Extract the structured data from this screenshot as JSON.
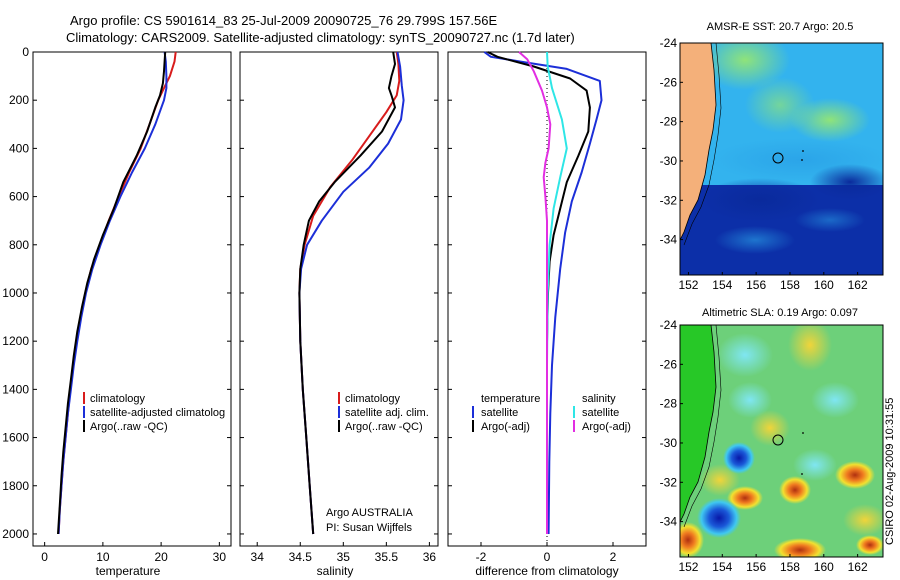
{
  "header": {
    "line1": "Argo profile: CS 5901614_83 25-Jul-2009 20090725_76 29.799S 157.56E",
    "line2": "Climatology: CARS2009. Satellite-adjusted climatology: synTS_20090727.nc (1.7d later)"
  },
  "footer": {
    "credit": "Argo AUSTRALIA",
    "pi": "PI: Susan Wijffels",
    "stamp": "CSIRO 02-Aug-2009 10:31:55"
  },
  "colors": {
    "climatology": "#d81c1c",
    "satellite": "#1c2fd8",
    "argo": "#000000",
    "satellite_salinity": "#2ee6e6",
    "argo_salinity": "#e22ee2",
    "land": "#f4b07a"
  },
  "chart_data": [
    {
      "type": "line",
      "id": "temperature-profile",
      "xlabel": "temperature",
      "ylabel": "",
      "xlim": [
        -2,
        32
      ],
      "ylim": [
        2050,
        0
      ],
      "xticks": [
        "0",
        "10",
        "20",
        "30"
      ],
      "xtick_values": [
        0,
        10,
        20,
        30
      ],
      "yticks": [
        "0",
        "200",
        "400",
        "600",
        "800",
        "1000",
        "1200",
        "1400",
        "1600",
        "1800",
        "2000"
      ],
      "ytick_values": [
        0,
        200,
        400,
        600,
        800,
        1000,
        1200,
        1400,
        1600,
        1800,
        2000
      ],
      "legend": [
        "climatology",
        "satellite-adjusted climatolog",
        "Argo(..raw -QC)"
      ],
      "series": [
        {
          "name": "climatology",
          "color": "#d81c1c",
          "points": [
            [
              22.5,
              0
            ],
            [
              22.3,
              40
            ],
            [
              21.5,
              100
            ],
            [
              20.5,
              150
            ],
            [
              19.5,
              200
            ],
            [
              18,
              300
            ],
            [
              16.5,
              400
            ],
            [
              14.5,
              500
            ],
            [
              12.7,
              600
            ],
            [
              11,
              700
            ],
            [
              9.5,
              800
            ],
            [
              8,
              900
            ],
            [
              7,
              1000
            ],
            [
              6.2,
              1100
            ],
            [
              5.5,
              1200
            ],
            [
              4.9,
              1300
            ],
            [
              4.4,
              1400
            ],
            [
              4,
              1500
            ],
            [
              3.6,
              1600
            ],
            [
              3.2,
              1700
            ],
            [
              2.9,
              1800
            ],
            [
              2.6,
              1900
            ],
            [
              2.4,
              2000
            ]
          ]
        },
        {
          "name": "satellite",
          "color": "#1c2fd8",
          "points": [
            [
              20.6,
              0
            ],
            [
              20.8,
              40
            ],
            [
              20.9,
              100
            ],
            [
              20.9,
              150
            ],
            [
              20.5,
              200
            ],
            [
              19,
              300
            ],
            [
              17.2,
              400
            ],
            [
              15,
              500
            ],
            [
              13,
              600
            ],
            [
              11.2,
              700
            ],
            [
              9.6,
              800
            ],
            [
              8.2,
              900
            ],
            [
              7.1,
              1000
            ],
            [
              6.3,
              1100
            ],
            [
              5.6,
              1200
            ],
            [
              5,
              1300
            ],
            [
              4.5,
              1400
            ],
            [
              4,
              1500
            ],
            [
              3.6,
              1600
            ],
            [
              3.2,
              1700
            ],
            [
              2.9,
              1800
            ],
            [
              2.6,
              1900
            ],
            [
              2.4,
              2000
            ]
          ]
        },
        {
          "name": "Argo(..raw -QC)",
          "color": "#000000",
          "points": [
            [
              20.7,
              0
            ],
            [
              20.6,
              40
            ],
            [
              20.5,
              80
            ],
            [
              20.3,
              130
            ],
            [
              19.8,
              180
            ],
            [
              19,
              230
            ],
            [
              17.6,
              330
            ],
            [
              15.8,
              430
            ],
            [
              13.5,
              540
            ],
            [
              11.9,
              650
            ],
            [
              10,
              760
            ],
            [
              8.5,
              860
            ],
            [
              7.3,
              960
            ],
            [
              6.4,
              1060
            ],
            [
              5.6,
              1160
            ],
            [
              5,
              1260
            ],
            [
              4.5,
              1360
            ],
            [
              4,
              1460
            ],
            [
              3.6,
              1560
            ],
            [
              3.2,
              1660
            ],
            [
              2.9,
              1760
            ],
            [
              2.6,
              1880
            ],
            [
              2.3,
              2000
            ]
          ]
        }
      ]
    },
    {
      "type": "line",
      "id": "salinity-profile",
      "xlabel": "salinity",
      "ylabel": "",
      "xlim": [
        33.8,
        36.1
      ],
      "ylim": [
        2050,
        0
      ],
      "xticks": [
        "34",
        "34.5",
        "35",
        "35.5",
        "36"
      ],
      "xtick_values": [
        34,
        34.5,
        35,
        35.5,
        36
      ],
      "legend": [
        "climatology",
        "satellite adj. clim.",
        "Argo(..raw -QC)"
      ],
      "series": [
        {
          "name": "climatology",
          "color": "#d81c1c",
          "points": [
            [
              35.62,
              0
            ],
            [
              35.64,
              50
            ],
            [
              35.65,
              120
            ],
            [
              35.62,
              180
            ],
            [
              35.5,
              250
            ],
            [
              35.3,
              350
            ],
            [
              35.1,
              450
            ],
            [
              34.85,
              560
            ],
            [
              34.65,
              680
            ],
            [
              34.55,
              800
            ],
            [
              34.5,
              900
            ],
            [
              34.49,
              1000
            ],
            [
              34.5,
              1200
            ],
            [
              34.53,
              1400
            ],
            [
              34.57,
              1600
            ],
            [
              34.61,
              1800
            ],
            [
              34.65,
              2000
            ]
          ]
        },
        {
          "name": "satellite",
          "color": "#1c2fd8",
          "points": [
            [
              35.63,
              0
            ],
            [
              35.66,
              60
            ],
            [
              35.68,
              140
            ],
            [
              35.7,
              200
            ],
            [
              35.67,
              280
            ],
            [
              35.52,
              380
            ],
            [
              35.3,
              480
            ],
            [
              35,
              580
            ],
            [
              34.75,
              700
            ],
            [
              34.58,
              800
            ],
            [
              34.51,
              900
            ],
            [
              34.49,
              1000
            ],
            [
              34.5,
              1200
            ],
            [
              34.53,
              1400
            ],
            [
              34.57,
              1600
            ],
            [
              34.61,
              1800
            ],
            [
              34.65,
              2000
            ]
          ]
        },
        {
          "name": "Argo(..raw -QC)",
          "color": "#000000",
          "points": [
            [
              35.58,
              0
            ],
            [
              35.6,
              50
            ],
            [
              35.56,
              100
            ],
            [
              35.53,
              150
            ],
            [
              35.56,
              180
            ],
            [
              35.6,
              230
            ],
            [
              35.45,
              330
            ],
            [
              35.2,
              430
            ],
            [
              34.9,
              540
            ],
            [
              34.72,
              620
            ],
            [
              34.6,
              700
            ],
            [
              34.54,
              800
            ],
            [
              34.5,
              900
            ],
            [
              34.49,
              1000
            ],
            [
              34.5,
              1200
            ],
            [
              34.53,
              1400
            ],
            [
              34.57,
              1600
            ],
            [
              34.61,
              1800
            ],
            [
              34.65,
              2000
            ]
          ]
        }
      ]
    },
    {
      "type": "line",
      "id": "difference-profile",
      "xlabel": "difference from climatology",
      "ylabel": "",
      "xlim": [
        -3,
        3
      ],
      "ylim": [
        2050,
        0
      ],
      "xticks": [
        "-2",
        "0",
        "2"
      ],
      "xtick_values": [
        -2,
        0,
        2
      ],
      "legend": [
        "temperature",
        "satellite",
        "Argo(-adj)",
        "salinity",
        "satellite",
        "Argo(-adj)"
      ],
      "series": [
        {
          "name": "temperature satellite",
          "color": "#1c2fd8",
          "points": [
            [
              -1.9,
              0
            ],
            [
              -1.7,
              20
            ],
            [
              -0.8,
              40
            ],
            [
              0.6,
              70
            ],
            [
              1.6,
              120
            ],
            [
              1.65,
              200
            ],
            [
              1.5,
              280
            ],
            [
              1.3,
              380
            ],
            [
              1.05,
              500
            ],
            [
              0.75,
              620
            ],
            [
              0.55,
              750
            ],
            [
              0.4,
              900
            ],
            [
              0.25,
              1100
            ],
            [
              0.15,
              1300
            ],
            [
              0.1,
              1500
            ],
            [
              0.07,
              1700
            ],
            [
              0.05,
              2000
            ]
          ]
        },
        {
          "name": "temperature Argo(-adj)",
          "color": "#000000",
          "points": [
            [
              -1.8,
              0
            ],
            [
              -1.5,
              20
            ],
            [
              -0.4,
              60
            ],
            [
              0.7,
              110
            ],
            [
              1.2,
              160
            ],
            [
              1.3,
              230
            ],
            [
              1.25,
              330
            ],
            [
              0.95,
              430
            ],
            [
              0.6,
              540
            ],
            [
              0.4,
              650
            ],
            [
              0.2,
              760
            ],
            [
              0.08,
              870
            ],
            [
              0.03,
              1000
            ],
            [
              0,
              1200
            ],
            [
              0,
              1500
            ],
            [
              0,
              1800
            ],
            [
              0,
              2000
            ]
          ]
        },
        {
          "name": "salinity satellite",
          "color": "#2ee6e6",
          "points": [
            [
              0,
              0
            ],
            [
              0.02,
              60
            ],
            [
              0.15,
              150
            ],
            [
              0.45,
              280
            ],
            [
              0.6,
              400
            ],
            [
              0.4,
              520
            ],
            [
              0.2,
              650
            ],
            [
              0.08,
              800
            ],
            [
              0.02,
              1000
            ],
            [
              0,
              1300
            ],
            [
              0,
              2000
            ]
          ]
        },
        {
          "name": "salinity Argo(-adj)",
          "color": "#e22ee2",
          "points": [
            [
              -0.85,
              0
            ],
            [
              -0.6,
              30
            ],
            [
              -0.4,
              80
            ],
            [
              -0.15,
              160
            ],
            [
              0,
              230
            ],
            [
              0.1,
              300
            ],
            [
              0.05,
              400
            ],
            [
              -0.05,
              460
            ],
            [
              -0.1,
              520
            ],
            [
              -0.05,
              600
            ],
            [
              0,
              700
            ],
            [
              0,
              1000
            ],
            [
              0,
              1400
            ],
            [
              0,
              2000
            ]
          ]
        }
      ]
    },
    {
      "type": "heatmap",
      "id": "sst-map",
      "title": "AMSR-E SST: 20.7 Argo: 20.5",
      "xticks": [
        "152",
        "154",
        "156",
        "158",
        "160",
        "162"
      ],
      "xtick_values": [
        152,
        154,
        156,
        158,
        160,
        162
      ],
      "yticks": [
        "-24",
        "-26",
        "-28",
        "-30",
        "-32",
        "-34"
      ],
      "ytick_values": [
        -24,
        -26,
        -28,
        -30,
        -32,
        -34
      ],
      "xlim": [
        151.5,
        163.5
      ],
      "ylim": [
        -35.8,
        -24
      ],
      "argo_position": [
        157.56,
        -29.799
      ]
    },
    {
      "type": "heatmap",
      "id": "sla-map",
      "title": "Altimetric SLA: 0.19 Argo: 0.097",
      "xticks": [
        "152",
        "154",
        "156",
        "158",
        "160",
        "162"
      ],
      "xtick_values": [
        152,
        154,
        156,
        158,
        160,
        162
      ],
      "yticks": [
        "-24",
        "-26",
        "-28",
        "-30",
        "-32",
        "-34"
      ],
      "ytick_values": [
        -24,
        -26,
        -28,
        -30,
        -32,
        -34
      ],
      "xlim": [
        151.5,
        163.5
      ],
      "ylim": [
        -35.8,
        -24
      ],
      "argo_position": [
        157.56,
        -29.799
      ]
    }
  ]
}
